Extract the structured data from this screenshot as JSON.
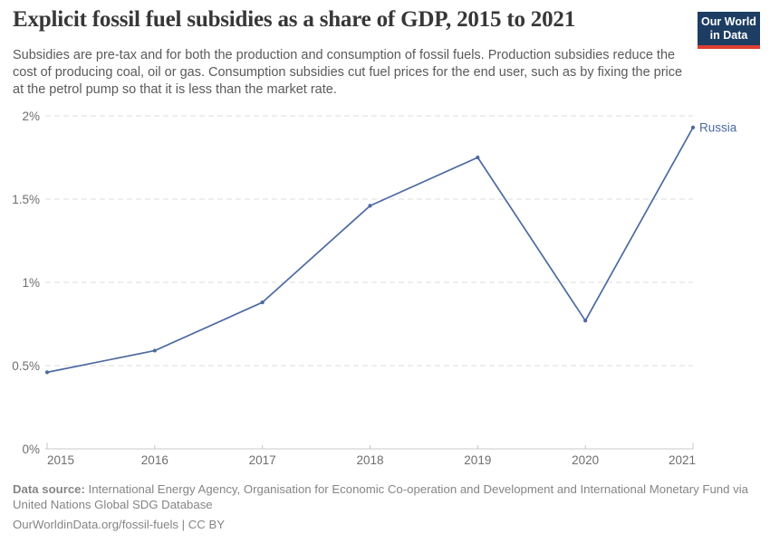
{
  "header": {
    "title": "Explicit fossil fuel subsidies as a share of GDP, 2015 to 2021",
    "subtitle": "Subsidies are pre-tax and for both the production and consumption of fossil fuels. Production subsidies reduce the cost of producing coal, oil or gas. Consumption subsidies cut fuel prices for the end user, such as by fixing the price at the petrol pump so that it is less than the market rate.",
    "logo": {
      "line1": "Our World",
      "line2": "in Data"
    }
  },
  "chart_data": {
    "type": "line",
    "title": "Explicit fossil fuel subsidies as a share of GDP, 2015 to 2021",
    "x": [
      2015,
      2016,
      2017,
      2018,
      2019,
      2020,
      2021
    ],
    "series": [
      {
        "name": "Russia",
        "values": [
          0.46,
          0.59,
          0.88,
          1.46,
          1.75,
          0.77,
          1.93
        ],
        "color": "#4c6aa0"
      }
    ],
    "xlabel": "",
    "ylabel": "",
    "ylim": [
      0,
      2
    ],
    "yticks": [
      {
        "value": 0,
        "label": "0%"
      },
      {
        "value": 0.5,
        "label": "0.5%"
      },
      {
        "value": 1,
        "label": "1%"
      },
      {
        "value": 1.5,
        "label": "1.5%"
      },
      {
        "value": 2,
        "label": "2%"
      }
    ],
    "grid": "horizontal-dashed",
    "legend_position": "end-of-line-label",
    "end_label": "Russia"
  },
  "footer": {
    "datasource_label": "Data source:",
    "datasource_text": " International Energy Agency, Organisation for Economic Co-operation and Development and International Monetary Fund via United Nations Global SDG Database",
    "license_line": "OurWorldinData.org/fossil-fuels | CC BY"
  },
  "colors": {
    "line": "#4c6aa0",
    "grid": "#dddddd",
    "axis_line": "#c8c8c8",
    "axis_text": "#6e6e6e",
    "title": "#373737",
    "subtitle": "#5a5a5a",
    "footer": "#858585",
    "logo_bg": "#1d3d63",
    "logo_stripe": "#dc3e31"
  }
}
